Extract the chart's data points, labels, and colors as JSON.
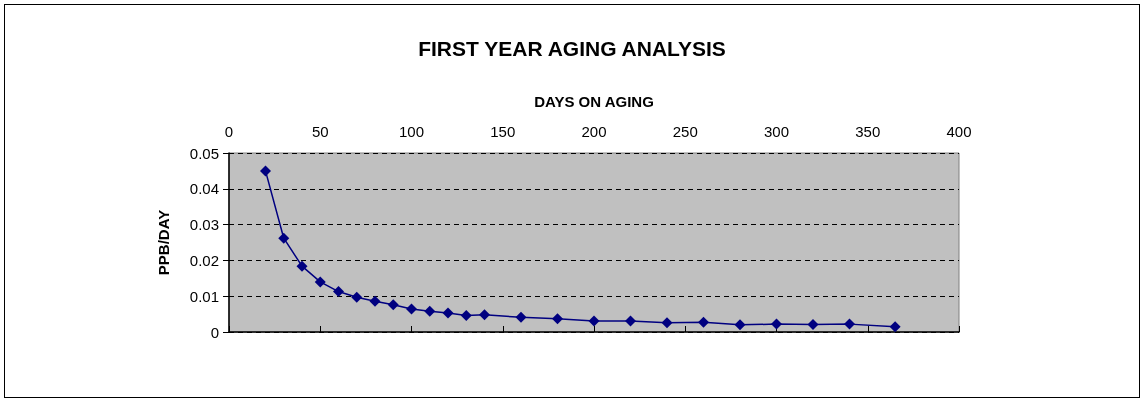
{
  "chart_data": {
    "type": "line",
    "title": "FIRST YEAR AGING ANALYSIS",
    "xlabel": "DAYS ON AGING",
    "ylabel": "PPB/DAY",
    "x": [
      20,
      30,
      40,
      50,
      60,
      70,
      80,
      90,
      100,
      110,
      120,
      130,
      140,
      160,
      180,
      200,
      220,
      240,
      260,
      280,
      300,
      320,
      340,
      365
    ],
    "series": [
      {
        "color": "#000080",
        "values": [
          0.045,
          0.0262,
          0.0184,
          0.014,
          0.0113,
          0.0097,
          0.0086,
          0.0076,
          0.0064,
          0.0058,
          0.0053,
          0.0046,
          0.0048,
          0.0041,
          0.0037,
          0.0031,
          0.0031,
          0.0026,
          0.0027,
          0.002,
          0.0022,
          0.0021,
          0.0022,
          0.0015
        ]
      }
    ],
    "xlim": [
      0,
      400
    ],
    "xticks": [
      0,
      50,
      100,
      150,
      200,
      250,
      300,
      350,
      400
    ],
    "ylim": [
      0,
      0.05
    ],
    "yticks": [
      0,
      0.01,
      0.02,
      0.03,
      0.04,
      0.05
    ],
    "grid": "y",
    "marker": "diamond",
    "line_style": "solid"
  }
}
